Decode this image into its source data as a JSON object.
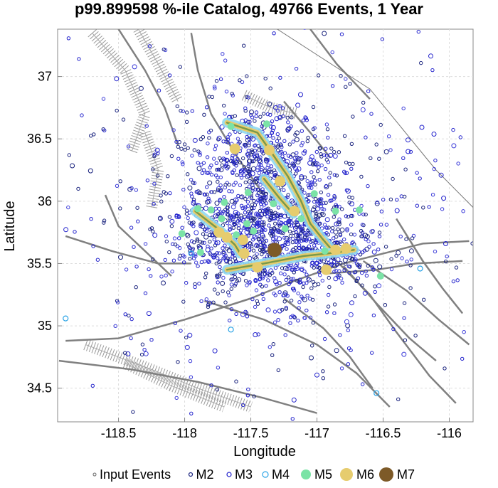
{
  "chart_data": {
    "type": "scatter",
    "title": "p99.899598 %-ile Catalog, 49766 Events, 1 Year",
    "xlabel": "Longitude",
    "ylabel": "Latitude",
    "xlim": [
      -118.96,
      -115.82
    ],
    "ylim": [
      34.23,
      37.38
    ],
    "x_ticks": [
      -118.5,
      -118,
      -117.5,
      -117,
      -116.5,
      -116
    ],
    "x_tick_labels": [
      "-118.5",
      "-118",
      "-117.5",
      "-117",
      "-116.5",
      "-116"
    ],
    "y_ticks": [
      34.5,
      35,
      35.5,
      36,
      36.5,
      37
    ],
    "y_tick_labels": [
      "34.5",
      "35",
      "35.5",
      "36",
      "36.5",
      "37"
    ],
    "grid": true,
    "legend_position": "bottom",
    "legend": [
      {
        "label": "Input Events",
        "color": "#808080",
        "filled": false
      },
      {
        "label": "M2",
        "color": "#1a237e",
        "filled": false
      },
      {
        "label": "M3",
        "color": "#2222cc",
        "filled": false
      },
      {
        "label": "M4",
        "color": "#29a3e6",
        "filled": false
      },
      {
        "label": "M5",
        "color": "#7be3a6",
        "filled": true
      },
      {
        "label": "M6",
        "color": "#e6cc6e",
        "filled": true
      },
      {
        "label": "M7",
        "color": "#7d5a28",
        "filled": true
      }
    ],
    "colors": {
      "fault": "#808080",
      "M2": "#1a237e",
      "M3": "#2222cc",
      "M4": "#29a3e6",
      "M5": "#7be3a6",
      "M6": "#e6cc6e",
      "M7": "#7d5a28",
      "rupture_line": "#7a9a4a"
    },
    "series": [
      {
        "name": "M7",
        "points": [
          [
            -117.32,
            35.61
          ]
        ]
      },
      {
        "name": "M6",
        "points": [
          [
            -117.36,
            36.41
          ],
          [
            -117.17,
            35.92
          ],
          [
            -117.28,
            36.16
          ],
          [
            -117.56,
            35.69
          ],
          [
            -117.68,
            35.71
          ],
          [
            -117.74,
            35.75
          ],
          [
            -117.45,
            35.47
          ],
          [
            -116.93,
            35.45
          ],
          [
            -116.86,
            35.61
          ],
          [
            -116.78,
            35.62
          ],
          [
            -117.55,
            35.58
          ],
          [
            -117.62,
            36.42
          ]
        ]
      },
      {
        "name": "M5",
        "points": [
          [
            -117.38,
            36.62
          ],
          [
            -117.65,
            36.6
          ],
          [
            -117.52,
            36.07
          ],
          [
            -117.8,
            35.93
          ],
          [
            -117.72,
            35.86
          ],
          [
            -117.9,
            35.94
          ],
          [
            -118.02,
            35.74
          ],
          [
            -117.88,
            35.59
          ],
          [
            -117.53,
            35.82
          ],
          [
            -117.48,
            35.76
          ],
          [
            -117.12,
            35.86
          ],
          [
            -117.02,
            36.06
          ],
          [
            -116.86,
            35.92
          ],
          [
            -116.68,
            35.93
          ],
          [
            -116.52,
            35.4
          ],
          [
            -117.7,
            35.99
          ],
          [
            -117.61,
            35.73
          ],
          [
            -117.33,
            35.98
          ],
          [
            -116.94,
            35.6
          ],
          [
            -117.24,
            35.78
          ]
        ]
      },
      {
        "name": "M4",
        "points": [
          [
            -117.65,
            34.97
          ],
          [
            -118.9,
            35.06
          ],
          [
            -116.55,
            34.46
          ],
          [
            -117.95,
            35.58
          ],
          [
            -116.22,
            35.46
          ]
        ]
      }
    ],
    "ruptures": [
      {
        "name": "rupture-a",
        "points": [
          [
            -117.68,
            36.63
          ],
          [
            -117.45,
            36.55
          ],
          [
            -117.35,
            36.4
          ],
          [
            -117.22,
            36.2
          ],
          [
            -117.12,
            36.0
          ],
          [
            -117.05,
            35.82
          ],
          [
            -116.96,
            35.7
          ],
          [
            -116.88,
            35.6
          ]
        ]
      },
      {
        "name": "rupture-b",
        "points": [
          [
            -117.92,
            35.92
          ],
          [
            -117.75,
            35.78
          ],
          [
            -117.62,
            35.65
          ],
          [
            -117.58,
            35.58
          ]
        ]
      },
      {
        "name": "rupture-c",
        "points": [
          [
            -117.68,
            35.45
          ],
          [
            -117.4,
            35.5
          ],
          [
            -117.1,
            35.56
          ],
          [
            -116.92,
            35.58
          ],
          [
            -116.72,
            35.61
          ]
        ]
      },
      {
        "name": "rupture-d",
        "points": [
          [
            -117.4,
            36.18
          ],
          [
            -117.28,
            36.02
          ],
          [
            -117.18,
            35.9
          ]
        ]
      }
    ],
    "faults": [
      [
        [
          -118.9,
          34.88
        ],
        [
          -118.5,
          34.9
        ],
        [
          -118.0,
          35.05
        ],
        [
          -117.5,
          35.22
        ],
        [
          -117.2,
          35.35
        ],
        [
          -116.8,
          35.5
        ],
        [
          -116.5,
          35.58
        ],
        [
          -116.2,
          35.66
        ],
        [
          -115.85,
          35.68
        ]
      ],
      [
        [
          -118.95,
          34.72
        ],
        [
          -118.4,
          34.65
        ],
        [
          -117.9,
          34.55
        ],
        [
          -117.4,
          34.42
        ],
        [
          -117.0,
          34.3
        ]
      ],
      [
        [
          -117.85,
          35.2
        ],
        [
          -117.4,
          35.05
        ],
        [
          -117.0,
          34.85
        ],
        [
          -116.7,
          34.62
        ],
        [
          -116.45,
          34.35
        ]
      ],
      [
        [
          -117.25,
          35.22
        ],
        [
          -116.95,
          34.98
        ],
        [
          -116.75,
          34.75
        ],
        [
          -116.58,
          34.5
        ]
      ],
      [
        [
          -116.88,
          35.55
        ],
        [
          -116.6,
          35.25
        ],
        [
          -116.4,
          34.95
        ],
        [
          -116.15,
          34.6
        ],
        [
          -115.95,
          34.38
        ]
      ],
      [
        [
          -116.8,
          35.48
        ],
        [
          -116.55,
          35.18
        ],
        [
          -116.3,
          34.9
        ],
        [
          -116.1,
          34.72
        ]
      ],
      [
        [
          -116.65,
          35.52
        ],
        [
          -116.32,
          35.28
        ],
        [
          -116.08,
          35.05
        ],
        [
          -115.85,
          34.85
        ]
      ],
      [
        [
          -116.4,
          35.86
        ],
        [
          -116.2,
          35.52
        ],
        [
          -116.05,
          35.3
        ],
        [
          -115.9,
          35.1
        ]
      ],
      [
        [
          -118.5,
          37.38
        ],
        [
          -118.3,
          37.05
        ],
        [
          -118.15,
          36.75
        ],
        [
          -118.05,
          36.45
        ]
      ],
      [
        [
          -117.95,
          37.35
        ],
        [
          -117.9,
          37.05
        ],
        [
          -117.8,
          36.7
        ],
        [
          -117.6,
          36.35
        ],
        [
          -117.4,
          36.05
        ]
      ],
      [
        [
          -117.05,
          37.38
        ],
        [
          -116.85,
          37.1
        ],
        [
          -116.6,
          36.82
        ]
      ],
      [
        [
          -117.25,
          36.8
        ],
        [
          -117.05,
          36.55
        ],
        [
          -116.9,
          36.35
        ]
      ],
      [
        [
          -118.1,
          35.4
        ],
        [
          -118.3,
          35.6
        ],
        [
          -118.5,
          35.8
        ],
        [
          -118.6,
          36.05
        ]
      ],
      [
        [
          -118.9,
          35.72
        ],
        [
          -118.55,
          35.6
        ],
        [
          -118.2,
          35.5
        ],
        [
          -117.95,
          35.5
        ]
      ],
      [
        [
          -116.92,
          35.42
        ],
        [
          -116.55,
          35.45
        ],
        [
          -116.25,
          35.5
        ],
        [
          -115.9,
          35.52
        ]
      ]
    ],
    "thin_lines": [
      [
        [
          -117.3,
          37.38
        ],
        [
          -116.6,
          36.9
        ],
        [
          -116.1,
          36.25
        ],
        [
          -115.82,
          35.95
        ]
      ]
    ],
    "dotted_zones": [
      [
        [
          -118.7,
          37.35
        ],
        [
          -118.45,
          37.05
        ],
        [
          -118.3,
          36.7
        ],
        [
          -118.4,
          36.4
        ]
      ],
      [
        [
          -118.35,
          37.38
        ],
        [
          -118.2,
          37.1
        ],
        [
          -118.05,
          36.8
        ]
      ],
      [
        [
          -118.3,
          36.55
        ],
        [
          -118.2,
          36.25
        ],
        [
          -118.25,
          35.95
        ]
      ],
      [
        [
          -118.75,
          34.85
        ],
        [
          -118.25,
          34.65
        ],
        [
          -117.9,
          34.5
        ],
        [
          -117.5,
          34.35
        ]
      ],
      [
        [
          -118.45,
          34.7
        ],
        [
          -118.1,
          34.52
        ],
        [
          -117.7,
          34.35
        ]
      ],
      [
        [
          -117.55,
          36.85
        ],
        [
          -117.35,
          36.75
        ],
        [
          -117.15,
          36.7
        ]
      ]
    ]
  }
}
